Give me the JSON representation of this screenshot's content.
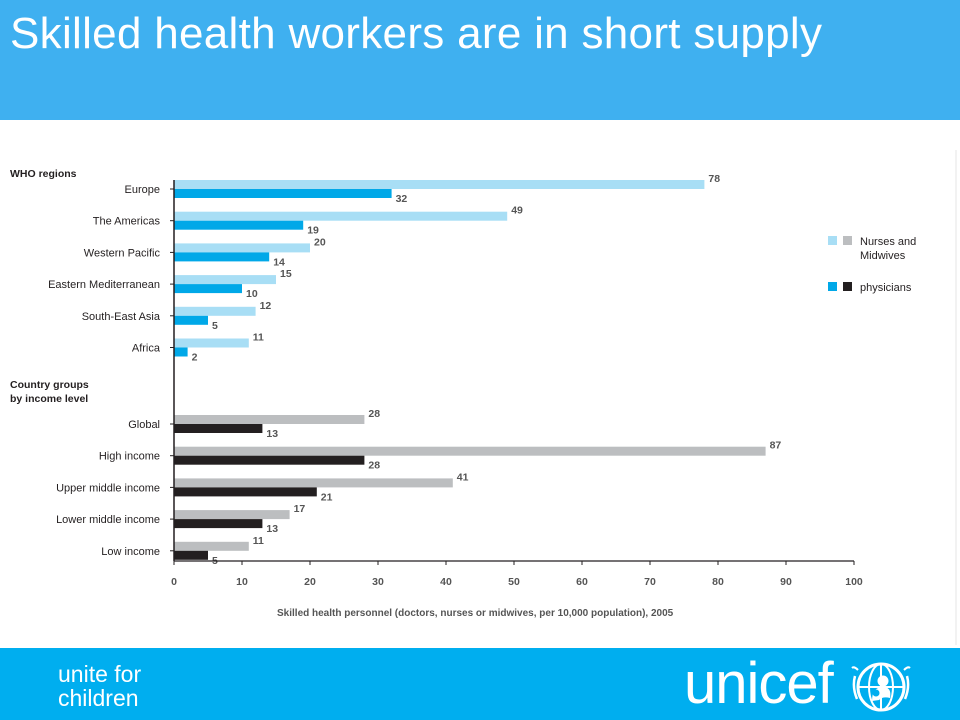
{
  "slide": {
    "title": "Skilled health workers are in short supply",
    "tagline": [
      "unite for",
      "children"
    ],
    "logo_text": "unicef",
    "logo_emblem_icon": "unicef-emblem-icon"
  },
  "colors": {
    "title_bar": "#3fb0f0",
    "footer_bar": "#00aeef",
    "region_nurses": "#a8def5",
    "region_physicians": "#00a8e8",
    "income_nurses": "#bcbec0",
    "income_physicians": "#231f20"
  },
  "chart_data": {
    "type": "bar",
    "orientation": "horizontal",
    "xlabel": "Skilled health personnel (doctors, nurses or midwives, per 10,000 population), 2005",
    "xlim": [
      0,
      100
    ],
    "x_ticks": [
      "0",
      "10",
      "20",
      "30",
      "40",
      "50",
      "60",
      "70",
      "80",
      "90",
      "100"
    ],
    "grid": false,
    "legend_position": "right",
    "legend": [
      {
        "label_lines": [
          "Nurses and",
          "Midwives"
        ],
        "colors": [
          "#a8def5",
          "#bcbec0"
        ]
      },
      {
        "label_lines": [
          "physicians"
        ],
        "colors": [
          "#00a8e8",
          "#231f20"
        ]
      }
    ],
    "groups": [
      {
        "heading": [
          "WHO regions"
        ],
        "categories": [
          "Europe",
          "The Americas",
          "Western Pacific",
          "Eastern Mediterranean",
          "South-East Asia",
          "Africa"
        ],
        "series": [
          {
            "name": "Nurses and Midwives",
            "color": "#a8def5",
            "values": [
              78,
              49,
              20,
              15,
              12,
              11
            ]
          },
          {
            "name": "physicians",
            "color": "#00a8e8",
            "values": [
              32,
              19,
              14,
              10,
              5,
              2
            ]
          }
        ]
      },
      {
        "heading": [
          "Country groups",
          "by income level"
        ],
        "categories": [
          "Global",
          "High income",
          "Upper middle income",
          "Lower middle income",
          "Low income"
        ],
        "series": [
          {
            "name": "Nurses and Midwives",
            "color": "#bcbec0",
            "values": [
              28,
              87,
              41,
              17,
              11
            ]
          },
          {
            "name": "physicians",
            "color": "#231f20",
            "values": [
              13,
              28,
              21,
              13,
              5
            ]
          }
        ]
      }
    ]
  }
}
